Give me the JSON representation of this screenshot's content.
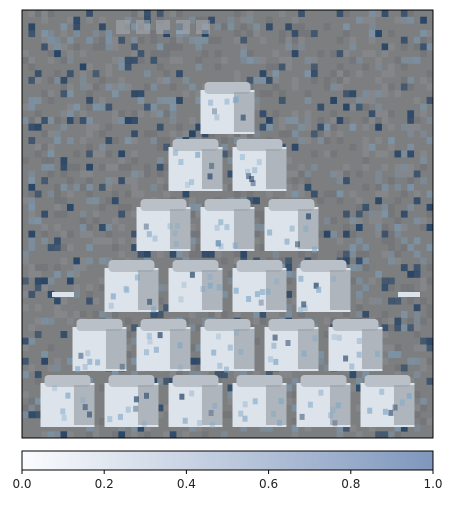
{
  "chart_data": [
    {
      "type": "heatmap",
      "title": "",
      "xlabel": "",
      "ylabel": "",
      "x_ticks": [],
      "y_ticks": [],
      "description_free": true,
      "image_grid": {
        "rows": 64,
        "cols": 64,
        "background_value": 0.5
      },
      "overlay": {
        "colormap": "Blues",
        "alpha": 0.5,
        "range": [
          0.0,
          1.0
        ]
      }
    },
    {
      "type": "colorbar",
      "orientation": "horizontal",
      "colormap": "Blues",
      "alpha": 0.5,
      "vmin": 0.0,
      "vmax": 1.0,
      "ticks": [
        0.0,
        0.2,
        0.4,
        0.6,
        0.8,
        1.0
      ],
      "tick_labels": [
        "0.0",
        "0.2",
        "0.4",
        "0.6",
        "0.8",
        "1.0"
      ]
    }
  ],
  "colors": {
    "background_gray": "#7c7e80",
    "cube_light": "#dde3ea",
    "cube_mid": "#b9c0c8",
    "cube_dark": "#9aa1a8",
    "noise_dark_blue": "#1f3f63",
    "noise_mid_blue": "#7ea7c8",
    "frame": "#000000",
    "colorbar_start": "#fbfcfe",
    "colorbar_end": "#7f97bd"
  }
}
